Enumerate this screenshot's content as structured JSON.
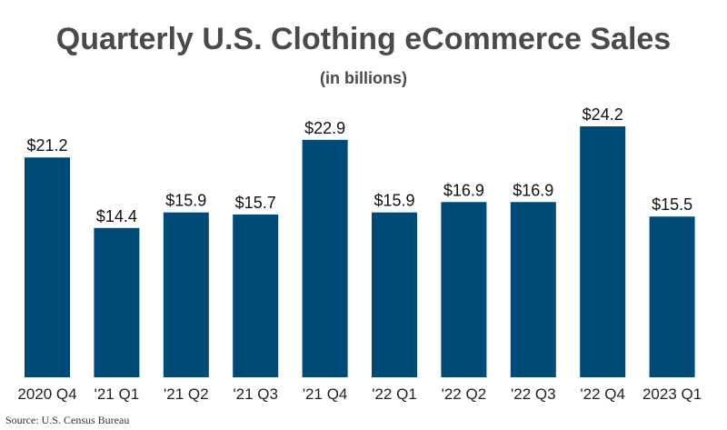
{
  "chart_data": {
    "type": "bar",
    "title": "Quarterly U.S. Clothing eCommerce Sales",
    "subtitle": "(in billions)",
    "categories": [
      "2020 Q4",
      "'21 Q1",
      "'21 Q2",
      "'21 Q3",
      "'21 Q4",
      "'22 Q1",
      "'22 Q2",
      "'22 Q3",
      "'22 Q4",
      "2023 Q1"
    ],
    "values": [
      21.2,
      14.4,
      15.9,
      15.7,
      22.9,
      15.9,
      16.9,
      16.9,
      24.2,
      15.5
    ],
    "value_labels": [
      "$21.2",
      "$14.4",
      "$15.9",
      "$15.7",
      "$22.9",
      "$15.9",
      "$16.9",
      "$16.9",
      "$24.2",
      "$15.5"
    ],
    "xlabel": "",
    "ylabel": "",
    "ylim": [
      0,
      24.2
    ],
    "bar_color": "#004a77",
    "grid": false,
    "legend": false
  },
  "source": "Source: U.S. Census Bureau"
}
